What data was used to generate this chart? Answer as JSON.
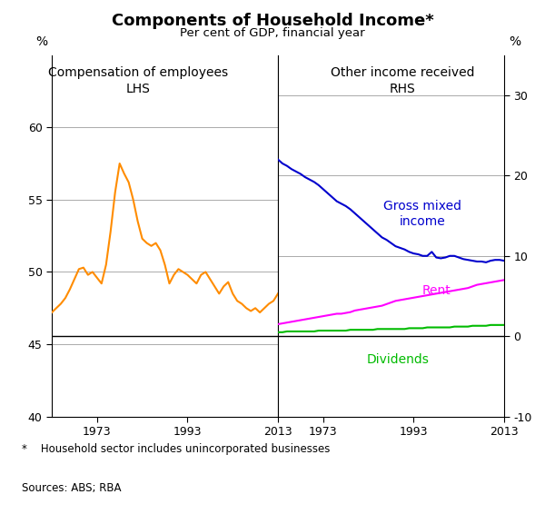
{
  "title": "Components of Household Income*",
  "subtitle": "Per cent of GDP, financial year",
  "footnote": "*    Household sector includes unincorporated businesses",
  "source": "Sources: ABS; RBA",
  "left_label": "Compensation of employees\nLHS",
  "right_label": "Other income received\nRHS",
  "lhs_ylabel": "%",
  "rhs_ylabel": "%",
  "years_lhs": [
    1963,
    1964,
    1965,
    1966,
    1967,
    1968,
    1969,
    1970,
    1971,
    1972,
    1973,
    1974,
    1975,
    1976,
    1977,
    1978,
    1979,
    1980,
    1981,
    1982,
    1983,
    1984,
    1985,
    1986,
    1987,
    1988,
    1989,
    1990,
    1991,
    1992,
    1993,
    1994,
    1995,
    1996,
    1997,
    1998,
    1999,
    2000,
    2001,
    2002,
    2003,
    2004,
    2005,
    2006,
    2007,
    2008,
    2009,
    2010,
    2011,
    2012,
    2013
  ],
  "comp_employees": [
    47.2,
    47.5,
    47.8,
    48.2,
    48.8,
    49.5,
    50.2,
    50.3,
    49.8,
    50.0,
    49.6,
    49.2,
    50.5,
    52.8,
    55.5,
    57.5,
    56.8,
    56.2,
    55.0,
    53.5,
    52.3,
    52.0,
    51.8,
    52.0,
    51.5,
    50.5,
    49.2,
    49.8,
    50.2,
    50.0,
    49.8,
    49.5,
    49.2,
    49.8,
    50.0,
    49.5,
    49.0,
    48.5,
    49.0,
    49.3,
    48.5,
    48.0,
    47.8,
    47.5,
    47.3,
    47.5,
    47.2,
    47.5,
    47.8,
    48.0,
    48.5
  ],
  "years_rhs": [
    1963,
    1964,
    1965,
    1966,
    1967,
    1968,
    1969,
    1970,
    1971,
    1972,
    1973,
    1974,
    1975,
    1976,
    1977,
    1978,
    1979,
    1980,
    1981,
    1982,
    1983,
    1984,
    1985,
    1986,
    1987,
    1988,
    1989,
    1990,
    1991,
    1992,
    1993,
    1994,
    1995,
    1996,
    1997,
    1998,
    1999,
    2000,
    2001,
    2002,
    2003,
    2004,
    2005,
    2006,
    2007,
    2008,
    2009,
    2010,
    2011,
    2012,
    2013
  ],
  "gross_mixed": [
    22.0,
    21.5,
    21.2,
    20.8,
    20.5,
    20.2,
    19.8,
    19.5,
    19.2,
    18.8,
    18.3,
    17.8,
    17.3,
    16.8,
    16.5,
    16.2,
    15.8,
    15.3,
    14.8,
    14.3,
    13.8,
    13.3,
    12.8,
    12.3,
    12.0,
    11.6,
    11.2,
    11.0,
    10.8,
    10.5,
    10.3,
    10.2,
    10.0,
    10.0,
    10.5,
    9.8,
    9.7,
    9.8,
    10.0,
    10.0,
    9.8,
    9.6,
    9.5,
    9.4,
    9.3,
    9.3,
    9.2,
    9.4,
    9.5,
    9.5,
    9.4
  ],
  "rent": [
    1.5,
    1.6,
    1.7,
    1.8,
    1.9,
    2.0,
    2.1,
    2.2,
    2.3,
    2.4,
    2.5,
    2.6,
    2.7,
    2.8,
    2.8,
    2.9,
    3.0,
    3.2,
    3.3,
    3.4,
    3.5,
    3.6,
    3.7,
    3.8,
    4.0,
    4.2,
    4.4,
    4.5,
    4.6,
    4.7,
    4.8,
    4.9,
    5.0,
    5.1,
    5.2,
    5.3,
    5.4,
    5.5,
    5.6,
    5.7,
    5.8,
    5.9,
    6.0,
    6.2,
    6.4,
    6.5,
    6.6,
    6.7,
    6.8,
    6.9,
    7.0
  ],
  "dividends": [
    0.5,
    0.5,
    0.6,
    0.6,
    0.6,
    0.6,
    0.6,
    0.6,
    0.6,
    0.7,
    0.7,
    0.7,
    0.7,
    0.7,
    0.7,
    0.7,
    0.8,
    0.8,
    0.8,
    0.8,
    0.8,
    0.8,
    0.9,
    0.9,
    0.9,
    0.9,
    0.9,
    0.9,
    0.9,
    1.0,
    1.0,
    1.0,
    1.0,
    1.1,
    1.1,
    1.1,
    1.1,
    1.1,
    1.1,
    1.2,
    1.2,
    1.2,
    1.2,
    1.3,
    1.3,
    1.3,
    1.3,
    1.4,
    1.4,
    1.4,
    1.4
  ],
  "lhs_ylim": [
    40,
    65
  ],
  "lhs_yticks": [
    40,
    45,
    50,
    55,
    60
  ],
  "rhs_ylim": [
    -10,
    35
  ],
  "rhs_yticks": [
    -10,
    0,
    10,
    20,
    30
  ],
  "xlim": [
    1963,
    2013
  ],
  "xticks": [
    1973,
    1993,
    2013
  ],
  "orange_color": "#FF8C00",
  "blue_color": "#0000CD",
  "magenta_color": "#FF00FF",
  "green_color": "#00BB00",
  "bg_color": "#FFFFFF",
  "grid_color": "#AAAAAA"
}
